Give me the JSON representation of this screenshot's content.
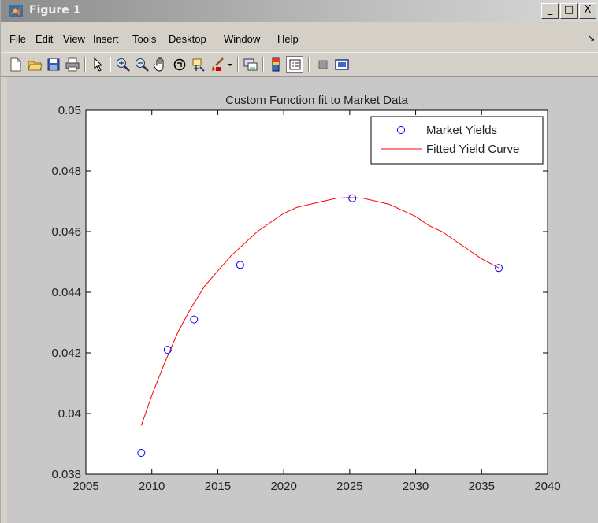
{
  "window": {
    "title": "Figure 1",
    "minimize": "_",
    "maximize": "□",
    "close": "X"
  },
  "menu": {
    "items": [
      {
        "label": "File"
      },
      {
        "label": "Edit"
      },
      {
        "label": "View"
      },
      {
        "label": "Insert"
      },
      {
        "label": "Tools"
      },
      {
        "label": "Desktop"
      },
      {
        "label": "Window"
      },
      {
        "label": "Help"
      }
    ],
    "overflow": "↘"
  },
  "toolbar": {
    "icons": [
      "new-file-icon",
      "open-folder-icon",
      "save-icon",
      "print-icon",
      "arrow-pointer-icon",
      "zoom-in-icon",
      "zoom-out-icon",
      "pan-hand-icon",
      "rotate-3d-icon",
      "data-cursor-icon",
      "brush-icon",
      "dropdown-arrow-icon",
      "link-plot-icon",
      "colorbar-icon",
      "legend-icon",
      "hide-plot-tools-icon",
      "show-plot-tools-icon"
    ]
  },
  "colors": {
    "marker": "#0000ff",
    "fit_line": "#ff0000",
    "axes_bg": "#ffffff",
    "figure_bg": "#c8c8c8"
  },
  "chart_data": {
    "type": "scatter",
    "title": "Custom Function fit to Market Data",
    "xlabel": "",
    "ylabel": "",
    "xlim": [
      2005,
      2040
    ],
    "ylim": [
      0.038,
      0.05
    ],
    "xticks": [
      2005,
      2010,
      2015,
      2020,
      2025,
      2030,
      2035,
      2040
    ],
    "xtick_labels": [
      "2005",
      "2010",
      "2015",
      "2020",
      "2025",
      "2030",
      "2035",
      "2040"
    ],
    "yticks": [
      0.038,
      0.04,
      0.042,
      0.044,
      0.046,
      0.048,
      0.05
    ],
    "ytick_labels": [
      "0.038",
      "0.04",
      "0.042",
      "0.044",
      "0.046",
      "0.048",
      "0.05"
    ],
    "grid": false,
    "legend": {
      "position": "top-right",
      "entries": [
        "Market Yields",
        "Fitted Yield Curve"
      ]
    },
    "series": [
      {
        "name": "Market Yields",
        "style": "markers",
        "x": [
          2009.2,
          2011.2,
          2013.2,
          2016.7,
          2025.2,
          2036.3
        ],
        "y": [
          0.0387,
          0.0421,
          0.0431,
          0.0449,
          0.0471,
          0.0448
        ]
      },
      {
        "name": "Fitted Yield Curve",
        "style": "line",
        "x": [
          2009.2,
          2010,
          2011,
          2012,
          2013,
          2014,
          2015,
          2016,
          2017,
          2018,
          2019,
          2020,
          2021,
          2022,
          2023,
          2024,
          2025,
          2026,
          2027,
          2028,
          2029,
          2030,
          2031,
          2032,
          2033,
          2034,
          2035,
          2036.3
        ],
        "y": [
          0.0396,
          0.0406,
          0.0417,
          0.0427,
          0.0435,
          0.0442,
          0.0447,
          0.0452,
          0.0456,
          0.046,
          0.0463,
          0.0466,
          0.0468,
          0.0469,
          0.047,
          0.0471,
          0.04712,
          0.0471,
          0.047,
          0.0469,
          0.0467,
          0.0465,
          0.0462,
          0.046,
          0.0457,
          0.0454,
          0.0451,
          0.0448
        ]
      }
    ]
  }
}
